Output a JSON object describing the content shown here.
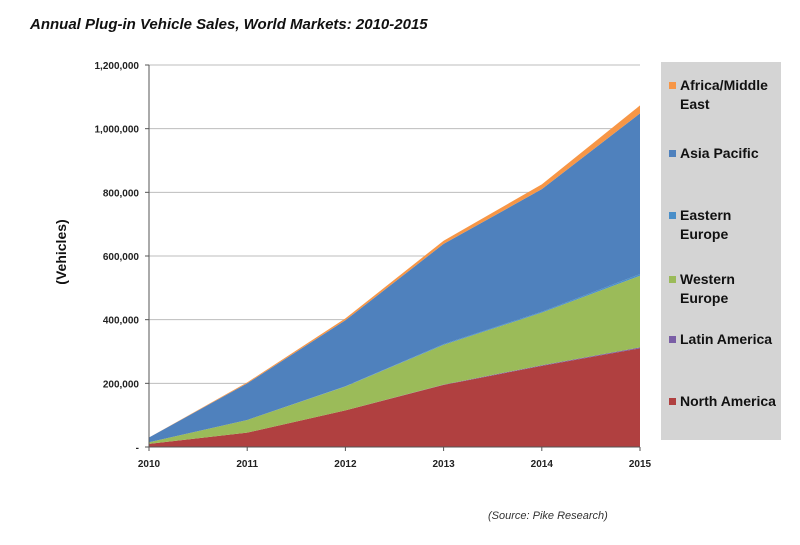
{
  "chart_data": {
    "type": "area",
    "stacked": true,
    "title": "Annual Plug-in Vehicle Sales, World Markets:  2010-2015",
    "ylabel": "(Vehicles)",
    "xlabel": "",
    "x": [
      "2010",
      "2011",
      "2012",
      "2013",
      "2014",
      "2015"
    ],
    "ylim": [
      0,
      1200000
    ],
    "yticks": [
      "-",
      "200,000",
      "400,000",
      "600,000",
      "800,000",
      "1,000,000",
      "1,200,000"
    ],
    "grid": true,
    "legend_position": "right",
    "series": [
      {
        "name": "North America",
        "color": "#b04040",
        "values": [
          10000,
          45000,
          115000,
          195000,
          255000,
          310000
        ]
      },
      {
        "name": "Latin America",
        "color": "#7a5ea6",
        "values": [
          0,
          0,
          0,
          1000,
          2000,
          3000
        ]
      },
      {
        "name": "Western Europe",
        "color": "#9bbb59",
        "values": [
          5000,
          40000,
          75000,
          125000,
          165000,
          225000
        ]
      },
      {
        "name": "Eastern Europe",
        "color": "#4a8fc9",
        "values": [
          0,
          0,
          1000,
          2000,
          3000,
          5000
        ]
      },
      {
        "name": "Asia Pacific",
        "color": "#4f81bd",
        "values": [
          15000,
          115000,
          207000,
          315000,
          385000,
          505000
        ]
      },
      {
        "name": "Africa/Middle East",
        "color": "#f79646",
        "values": [
          0,
          3000,
          6000,
          10000,
          15000,
          25000
        ]
      }
    ]
  },
  "source": "(Source: Pike Research)"
}
